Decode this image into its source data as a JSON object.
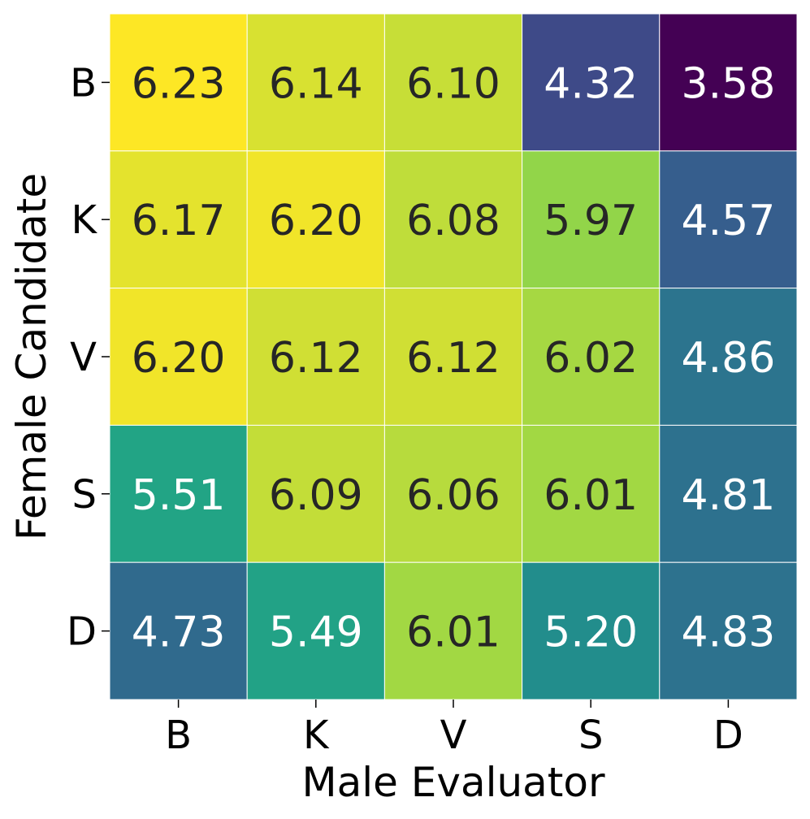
{
  "chart_data": {
    "type": "heatmap",
    "title": "",
    "xlabel": "Male Evaluator",
    "ylabel": "Female Candidate",
    "x_categories": [
      "B",
      "K",
      "V",
      "S",
      "D"
    ],
    "y_categories": [
      "B",
      "K",
      "V",
      "S",
      "D"
    ],
    "values": [
      [
        6.23,
        6.14,
        6.1,
        4.32,
        3.58
      ],
      [
        6.17,
        6.2,
        6.08,
        5.97,
        4.57
      ],
      [
        6.2,
        6.12,
        6.12,
        6.02,
        4.86
      ],
      [
        5.51,
        6.09,
        6.06,
        6.01,
        4.81
      ],
      [
        4.73,
        5.49,
        6.01,
        5.2,
        4.83
      ]
    ],
    "value_labels": [
      [
        "6.23",
        "6.14",
        "6.10",
        "4.32",
        "3.58"
      ],
      [
        "6.17",
        "6.20",
        "6.08",
        "5.97",
        "4.57"
      ],
      [
        "6.20",
        "6.12",
        "6.12",
        "6.02",
        "4.86"
      ],
      [
        "5.51",
        "6.09",
        "6.06",
        "6.01",
        "4.81"
      ],
      [
        "4.73",
        "5.49",
        "6.01",
        "5.20",
        "4.83"
      ]
    ],
    "colormap": "viridis",
    "color_range": [
      3.58,
      6.23
    ],
    "gridline_color": "#ffffff",
    "text_color_light": "#ffffff",
    "text_color_dark": "#262626"
  }
}
